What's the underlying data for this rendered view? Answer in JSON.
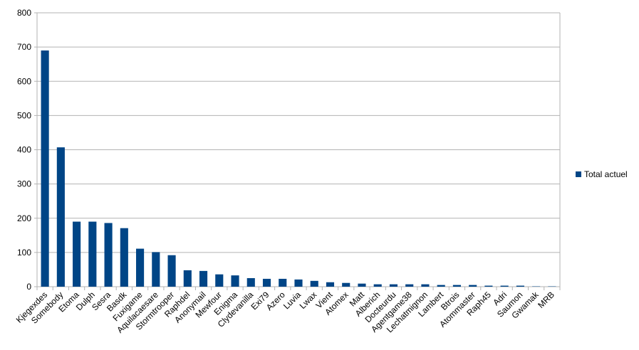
{
  "chart_data": {
    "type": "bar",
    "title": "",
    "xlabel": "",
    "ylabel": "",
    "ylim": [
      0,
      800
    ],
    "yticks": [
      0,
      100,
      200,
      300,
      400,
      500,
      600,
      700,
      800
    ],
    "grid": true,
    "legend_position": "right",
    "bar_color": "#004586",
    "categories": [
      "Kjegexdes",
      "Somebody",
      "Etoma",
      "Dulph",
      "Sesra",
      "Basdk",
      "Fuxigame",
      "Aquilacaesare",
      "Stormtrooper",
      "Raphdel",
      "Anonymail",
      "Mewfour",
      "Enigma",
      "Clydevanilla",
      "Exi79",
      "Azero",
      "Luvia",
      "Lwax",
      "Vient",
      "Atomex",
      "Matt",
      "Alberich",
      "Docteurdu",
      "Agentgame38",
      "Lechatmignon",
      "Lambert",
      "Btrois",
      "Atommaster",
      "Raph45",
      "Adri",
      "Saumon",
      "Gwamak",
      "MRB"
    ],
    "series": [
      {
        "name": "Total actuel",
        "values": [
          690,
          407,
          190,
          190,
          186,
          171,
          111,
          101,
          92,
          48,
          46,
          36,
          33,
          25,
          23,
          23,
          21,
          17,
          13,
          11,
          9,
          7,
          7,
          7,
          7,
          5,
          5,
          5,
          3,
          3,
          3,
          1,
          1
        ]
      }
    ]
  }
}
